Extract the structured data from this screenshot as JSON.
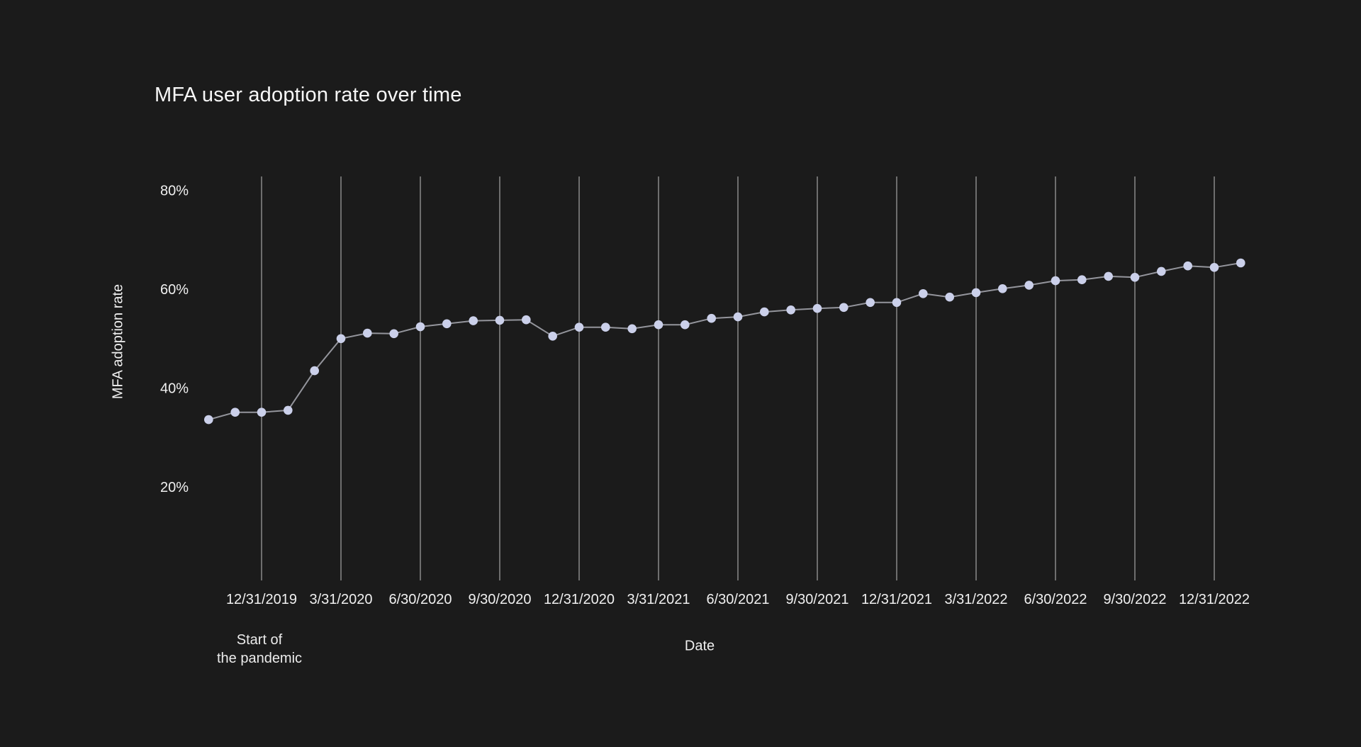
{
  "page": {
    "background_color": "#1b1b1b"
  },
  "chart": {
    "title": "MFA user adoption rate over time",
    "x_axis_title": "Date",
    "y_axis_title": "MFA adoption rate",
    "annotation": {
      "line1": "Start of",
      "line2": "the pandemic"
    }
  },
  "chart_data": {
    "type": "line",
    "title": "MFA user adoption rate over time",
    "xlabel": "Date",
    "ylabel": "MFA adoption rate",
    "x": [
      "10/31/2019",
      "11/30/2019",
      "12/31/2019",
      "1/31/2020",
      "2/29/2020",
      "3/31/2020",
      "4/30/2020",
      "5/31/2020",
      "6/30/2020",
      "7/31/2020",
      "8/31/2020",
      "9/30/2020",
      "10/31/2020",
      "11/30/2020",
      "12/31/2020",
      "1/31/2021",
      "2/28/2021",
      "3/31/2021",
      "4/30/2021",
      "5/31/2021",
      "6/30/2021",
      "7/31/2021",
      "8/31/2021",
      "9/30/2021",
      "10/31/2021",
      "11/30/2021",
      "12/31/2021",
      "1/31/2022",
      "2/28/2022",
      "3/31/2022",
      "4/30/2022",
      "5/31/2022",
      "6/30/2022",
      "7/31/2022",
      "8/31/2022",
      "9/30/2022",
      "10/31/2022",
      "11/30/2022",
      "12/31/2022",
      "1/31/2023"
    ],
    "values": [
      33.6,
      35.1,
      35.1,
      35.5,
      43.5,
      50.0,
      51.1,
      51.0,
      52.4,
      53.0,
      53.6,
      53.7,
      53.8,
      50.5,
      52.3,
      52.3,
      52.0,
      52.8,
      52.8,
      54.1,
      54.4,
      55.4,
      55.8,
      56.1,
      56.3,
      57.3,
      57.3,
      59.1,
      58.4,
      59.3,
      60.1,
      60.8,
      61.7,
      61.9,
      62.6,
      62.4,
      63.6,
      64.7,
      64.4,
      65.3
    ],
    "x_tick_labels": [
      "12/31/2019",
      "3/31/2020",
      "6/30/2020",
      "9/30/2020",
      "12/31/2020",
      "3/31/2021",
      "6/30/2021",
      "9/30/2021",
      "12/31/2021",
      "3/31/2022",
      "6/30/2022",
      "9/30/2022",
      "12/31/2022"
    ],
    "y_ticks": [
      {
        "value": 80,
        "label": "80%"
      },
      {
        "value": 60,
        "label": "60%"
      },
      {
        "value": 40,
        "label": "40%"
      },
      {
        "value": 20,
        "label": "20%"
      }
    ],
    "annotation": {
      "text": "Start of the pandemic",
      "at_x_tick": "12/31/2019"
    },
    "legend": "none",
    "grid": "vertical-only",
    "ylim": [
      0,
      83
    ],
    "colors": {
      "background": "#1b1b1b",
      "grid": "#8a8a8a",
      "line": "#94959c",
      "dot": "#cbd0ea",
      "text": "#f0f0f0"
    }
  }
}
